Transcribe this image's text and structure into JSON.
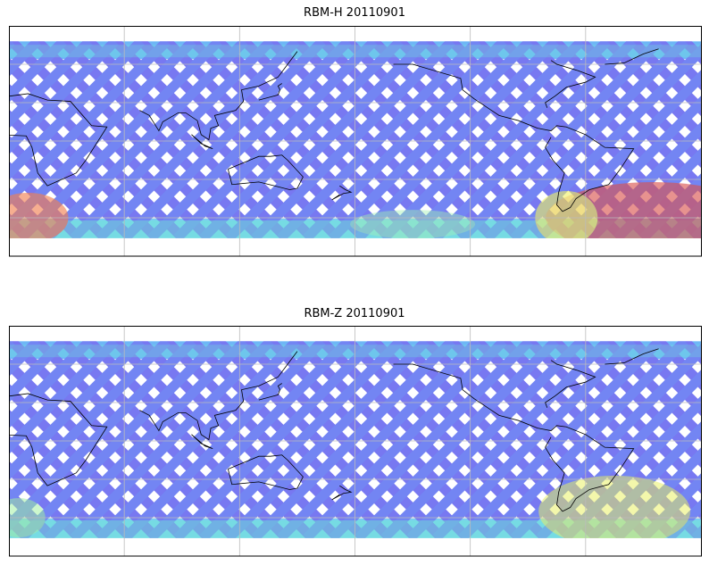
{
  "panels": [
    {
      "title": "RBM-H 20110901",
      "hot_color": "#d9534f",
      "warm_color": "#f0f060",
      "mid_color": "#70f0d0",
      "base_color": "#6a6af0"
    },
    {
      "title": "RBM-Z 20110901",
      "hot_color": "#e8f060",
      "warm_color": "#e8f060",
      "mid_color": "#70f0d0",
      "base_color": "#6a6af0"
    }
  ],
  "map": {
    "lon_range": [
      0,
      360
    ],
    "lat_range": [
      -90,
      90
    ],
    "gridlines": {
      "lon_step": 60,
      "lat_step": 30
    },
    "data_lat_range": [
      -76,
      78
    ]
  }
}
